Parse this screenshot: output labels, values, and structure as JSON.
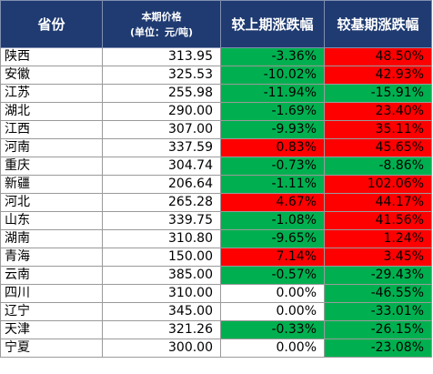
{
  "header": {
    "province": "省份",
    "price_line1": "本期价格",
    "price_line2": "(单位：元/吨)",
    "vs_prev": "较上期涨跌幅",
    "vs_base": "较基期涨跌幅"
  },
  "colors": {
    "header_bg": "#1f3b72",
    "positive": "#ff0000",
    "negative": "#00b050",
    "neutral": "#ffffff"
  },
  "rows": [
    {
      "province": "陕西",
      "price": "313.95",
      "vs_prev": "-3.36%",
      "vs_base": "48.50%"
    },
    {
      "province": "安徽",
      "price": "325.53",
      "vs_prev": "-10.02%",
      "vs_base": "42.93%"
    },
    {
      "province": "江苏",
      "price": "255.98",
      "vs_prev": "-11.94%",
      "vs_base": "-15.91%"
    },
    {
      "province": "湖北",
      "price": "290.00",
      "vs_prev": "-1.69%",
      "vs_base": "23.40%"
    },
    {
      "province": "江西",
      "price": "307.00",
      "vs_prev": "-9.93%",
      "vs_base": "35.11%"
    },
    {
      "province": "河南",
      "price": "337.59",
      "vs_prev": "0.83%",
      "vs_base": "45.65%"
    },
    {
      "province": "重庆",
      "price": "304.74",
      "vs_prev": "-0.73%",
      "vs_base": "-8.86%"
    },
    {
      "province": "新疆",
      "price": "206.64",
      "vs_prev": "-1.11%",
      "vs_base": "102.06%"
    },
    {
      "province": "河北",
      "price": "265.28",
      "vs_prev": "4.67%",
      "vs_base": "44.17%"
    },
    {
      "province": "山东",
      "price": "339.75",
      "vs_prev": "-1.08%",
      "vs_base": "41.56%"
    },
    {
      "province": "湖南",
      "price": "310.80",
      "vs_prev": "-9.65%",
      "vs_base": "1.24%"
    },
    {
      "province": "青海",
      "price": "150.00",
      "vs_prev": "7.14%",
      "vs_base": "3.45%"
    },
    {
      "province": "云南",
      "price": "385.00",
      "vs_prev": "-0.57%",
      "vs_base": "-29.43%"
    },
    {
      "province": "四川",
      "price": "310.00",
      "vs_prev": "0.00%",
      "vs_base": "-46.55%"
    },
    {
      "province": "辽宁",
      "price": "345.00",
      "vs_prev": "0.00%",
      "vs_base": "-33.01%"
    },
    {
      "province": "天津",
      "price": "321.26",
      "vs_prev": "-0.33%",
      "vs_base": "-26.15%"
    },
    {
      "province": "宁夏",
      "price": "300.00",
      "vs_prev": "0.00%",
      "vs_base": "-23.08%"
    }
  ]
}
